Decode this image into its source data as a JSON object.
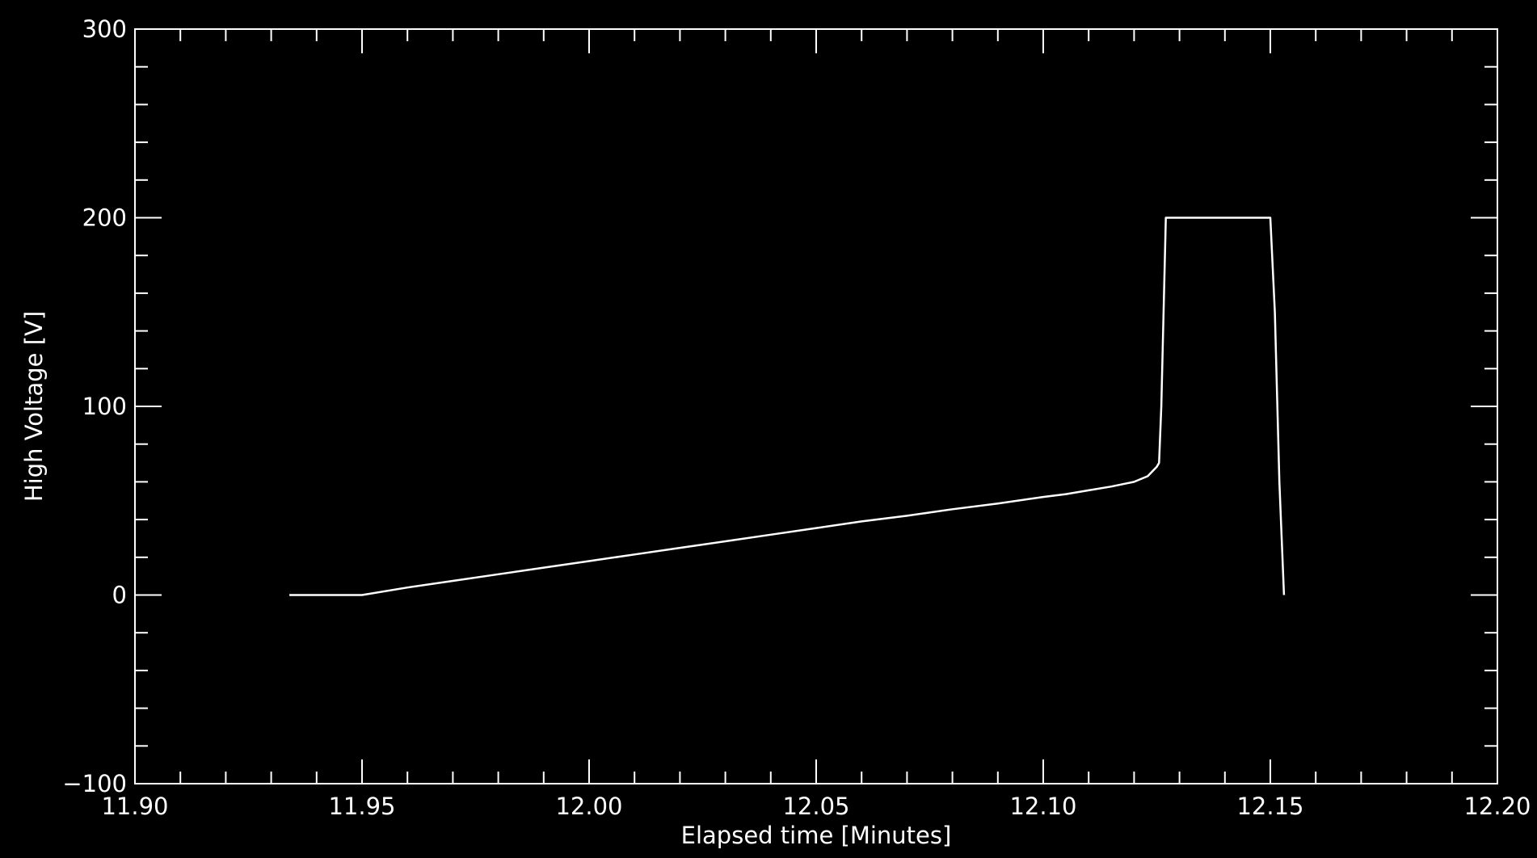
{
  "chart_data": {
    "type": "line",
    "title": "",
    "xlabel": "Elapsed time [Minutes]",
    "ylabel": "High Voltage [V]",
    "xlim": [
      11.9,
      12.2
    ],
    "ylim": [
      -100,
      300
    ],
    "x_ticks": [
      11.9,
      11.95,
      12.0,
      12.05,
      12.1,
      12.15,
      12.2
    ],
    "x_tick_labels": [
      "11.90",
      "11.95",
      "12.00",
      "12.05",
      "12.10",
      "12.15",
      "12.20"
    ],
    "y_ticks": [
      -100,
      0,
      100,
      200,
      300
    ],
    "y_tick_labels": [
      "−100",
      "0",
      "100",
      "200",
      "300"
    ],
    "grid": false,
    "colors": {
      "background": "#000000",
      "foreground": "#ffffff"
    },
    "series": [
      {
        "x": [
          11.934,
          11.95,
          11.96,
          11.97,
          11.98,
          11.99,
          12.0,
          12.01,
          12.02,
          12.03,
          12.04,
          12.05,
          12.06,
          12.07,
          12.08,
          12.09,
          12.1,
          12.105,
          12.11,
          12.115,
          12.12,
          12.123,
          12.125,
          12.1255,
          12.126,
          12.1265,
          12.127,
          12.135,
          12.145,
          12.15,
          12.151,
          12.152,
          12.153
        ],
        "y": [
          0,
          0,
          4,
          7.5,
          11,
          14.5,
          18,
          21.5,
          25,
          28.5,
          32,
          35.5,
          39,
          42,
          45.5,
          48.5,
          52,
          53.5,
          55.5,
          57.5,
          60,
          63,
          68,
          70,
          100,
          150,
          200,
          200,
          200,
          200,
          150,
          60,
          0
        ]
      }
    ]
  }
}
